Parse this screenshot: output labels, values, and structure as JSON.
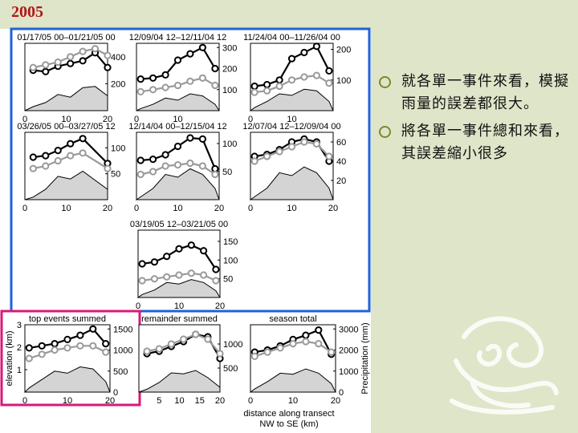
{
  "slide": {
    "title": "2005",
    "bullets": [
      "就各單一事件來看，模擬雨量的誤差都很大。",
      "將各單一事件總和來看，其誤差縮小很多"
    ],
    "colors": {
      "title": "#b0171a",
      "background": "#dfe5c8",
      "blue_box": "#1f62d9",
      "pink_box": "#d9197a",
      "bullet": "#7a8a2c"
    },
    "ornament": "decorative-dragon-emblem-icon"
  },
  "figure": {
    "ylabel_left": "elevation (km)",
    "ylabel_right": "Precipitation (mm)",
    "xlabel": [
      "distance along transect",
      "NW to SE (km)"
    ]
  },
  "chart_data": [
    {
      "type": "line",
      "title": "01/17/05 00–01/21/05 00",
      "xlim": [
        0,
        20
      ],
      "xticks": [
        0,
        10,
        20
      ],
      "right_ticks": [
        "200",
        "400"
      ],
      "right_range": [
        0,
        500
      ],
      "left_ticks": [],
      "left_range": [
        0,
        3
      ],
      "x": [
        2,
        5,
        8,
        11,
        14,
        17,
        20
      ],
      "series": [
        {
          "style": "observed",
          "values": [
            300,
            290,
            330,
            350,
            370,
            430,
            320
          ]
        },
        {
          "style": "simulated",
          "values": [
            320,
            340,
            360,
            400,
            440,
            460,
            410
          ]
        },
        {
          "style": "terrain",
          "values": [
            30,
            60,
            120,
            100,
            170,
            180,
            110
          ]
        }
      ]
    },
    {
      "type": "line",
      "title": "12/09/04 12–12/11/04 12",
      "xlim": [
        0,
        20
      ],
      "xticks": [
        0,
        10
      ],
      "right_ticks": [
        "100",
        "200",
        "300"
      ],
      "right_range": [
        0,
        320
      ],
      "left_ticks": [],
      "left_range": [
        0,
        3
      ],
      "x": [
        1,
        4,
        7,
        10,
        13,
        16,
        19
      ],
      "series": [
        {
          "style": "observed",
          "values": [
            150,
            155,
            170,
            240,
            270,
            300,
            200
          ]
        },
        {
          "style": "simulated",
          "values": [
            90,
            100,
            110,
            120,
            140,
            155,
            120
          ]
        },
        {
          "style": "terrain",
          "values": [
            10,
            30,
            60,
            50,
            80,
            70,
            30
          ]
        }
      ]
    },
    {
      "type": "line",
      "title": "11/24/04 00–11/26/04 00",
      "xlim": [
        0,
        20
      ],
      "xticks": [
        0,
        10
      ],
      "right_ticks": [
        "100",
        "200"
      ],
      "right_range": [
        0,
        220
      ],
      "left_ticks": [],
      "left_range": [
        0,
        3
      ],
      "x": [
        1,
        4,
        7,
        10,
        13,
        16,
        19
      ],
      "series": [
        {
          "style": "observed",
          "values": [
            80,
            85,
            100,
            170,
            190,
            210,
            130
          ]
        },
        {
          "style": "simulated",
          "values": [
            60,
            65,
            80,
            100,
            110,
            115,
            90
          ]
        },
        {
          "style": "terrain",
          "values": [
            10,
            30,
            55,
            50,
            70,
            65,
            30
          ]
        }
      ]
    },
    {
      "type": "line",
      "title": "03/26/05 00–03/27/05 12",
      "xlim": [
        0,
        20
      ],
      "xticks": [
        0,
        10,
        20
      ],
      "right_ticks": [
        "50",
        "100"
      ],
      "right_range": [
        0,
        130
      ],
      "left_ticks": [],
      "left_range": [
        0,
        3
      ],
      "x": [
        2,
        5,
        8,
        11,
        14,
        20
      ],
      "series": [
        {
          "style": "observed",
          "values": [
            82,
            85,
            95,
            108,
            118,
            70
          ]
        },
        {
          "style": "simulated",
          "values": [
            60,
            65,
            75,
            85,
            90,
            60
          ]
        },
        {
          "style": "terrain",
          "values": [
            5,
            20,
            45,
            40,
            55,
            20
          ]
        }
      ]
    },
    {
      "type": "line",
      "title": "12/14/04 00–12/15/04 12",
      "xlim": [
        0,
        20
      ],
      "xticks": [
        0,
        10,
        20
      ],
      "right_ticks": [
        "50",
        "100"
      ],
      "right_range": [
        0,
        120
      ],
      "left_ticks": [],
      "left_range": [
        0,
        3
      ],
      "x": [
        1,
        4,
        7,
        10,
        13,
        16,
        19
      ],
      "series": [
        {
          "style": "observed",
          "values": [
            70,
            72,
            80,
            95,
            110,
            108,
            55
          ]
        },
        {
          "style": "simulated",
          "values": [
            45,
            50,
            60,
            62,
            65,
            60,
            45
          ]
        },
        {
          "style": "terrain",
          "values": [
            5,
            20,
            45,
            40,
            55,
            45,
            20
          ]
        }
      ]
    },
    {
      "type": "line",
      "title": "12/07/04 12–12/09/04 00",
      "xlim": [
        0,
        20
      ],
      "xticks": [
        0,
        10,
        20
      ],
      "right_ticks": [
        "20",
        "40",
        "60"
      ],
      "right_range": [
        0,
        70
      ],
      "left_ticks": [],
      "left_range": [
        0,
        3
      ],
      "x": [
        1,
        4,
        7,
        10,
        13,
        16,
        19
      ],
      "series": [
        {
          "style": "observed",
          "values": [
            45,
            47,
            52,
            60,
            63,
            60,
            40
          ]
        },
        {
          "style": "simulated",
          "values": [
            40,
            45,
            50,
            55,
            60,
            58,
            45
          ]
        },
        {
          "style": "terrain",
          "values": [
            3,
            12,
            28,
            25,
            34,
            28,
            12
          ]
        }
      ]
    },
    {
      "type": "line",
      "title": "03/19/05 12–03/21/05 00",
      "xlim": [
        0,
        20
      ],
      "xticks": [
        0,
        10,
        20
      ],
      "right_ticks": [
        "50",
        "100",
        "150"
      ],
      "right_range": [
        0,
        180
      ],
      "left_ticks": [],
      "left_range": [
        0,
        3
      ],
      "x": [
        1,
        4,
        7,
        10,
        13,
        16,
        19
      ],
      "series": [
        {
          "style": "observed",
          "values": [
            90,
            95,
            110,
            130,
            140,
            125,
            75
          ]
        },
        {
          "style": "simulated",
          "values": [
            45,
            50,
            55,
            60,
            65,
            60,
            45
          ]
        },
        {
          "style": "terrain",
          "values": [
            8,
            20,
            40,
            36,
            48,
            40,
            18
          ]
        }
      ]
    },
    {
      "type": "line",
      "title": "top events summed",
      "xlim": [
        0,
        20
      ],
      "xticks": [
        0,
        10,
        20
      ],
      "right_ticks": [
        "0",
        "500",
        "1000",
        "1500"
      ],
      "right_range": [
        0,
        1600
      ],
      "left_ticks": [
        "1",
        "2",
        "3"
      ],
      "left_range": [
        0,
        3
      ],
      "x": [
        1,
        4,
        7,
        10,
        13,
        16,
        19
      ],
      "series": [
        {
          "style": "observed",
          "values": [
            1050,
            1100,
            1150,
            1250,
            1350,
            1500,
            1150
          ]
        },
        {
          "style": "simulated",
          "values": [
            800,
            900,
            1000,
            1050,
            1100,
            1100,
            950
          ]
        },
        {
          "style": "terrain",
          "values": [
            100,
            300,
            500,
            450,
            600,
            550,
            250
          ]
        }
      ]
    },
    {
      "type": "line",
      "title": "remainder summed",
      "xlim": [
        0,
        20
      ],
      "xticks": [
        5,
        10,
        15,
        20
      ],
      "right_ticks": [
        "500",
        "1000"
      ],
      "right_range": [
        0,
        1400
      ],
      "left_ticks": [],
      "left_range": [
        0,
        3
      ],
      "x": [
        2,
        5,
        8,
        11,
        14,
        17,
        20
      ],
      "series": [
        {
          "style": "observed",
          "values": [
            800,
            850,
            950,
            1050,
            1200,
            1150,
            700
          ]
        },
        {
          "style": "simulated",
          "values": [
            850,
            900,
            1000,
            1100,
            1200,
            1100,
            800
          ]
        },
        {
          "style": "terrain",
          "values": [
            60,
            200,
            400,
            380,
            450,
            300,
            100
          ]
        }
      ]
    },
    {
      "type": "line",
      "title": "season total",
      "xlim": [
        0,
        20
      ],
      "xticks": [
        0,
        10,
        20
      ],
      "right_ticks": [
        "0",
        "1000",
        "2000",
        "3000"
      ],
      "right_range": [
        0,
        3200
      ],
      "left_ticks": [],
      "left_range": [
        0,
        3
      ],
      "x": [
        1,
        4,
        7,
        10,
        13,
        16,
        19
      ],
      "series": [
        {
          "style": "observed",
          "values": [
            1900,
            2000,
            2200,
            2500,
            2700,
            2950,
            1800
          ]
        },
        {
          "style": "simulated",
          "values": [
            1700,
            1900,
            2100,
            2300,
            2400,
            2300,
            1900
          ]
        },
        {
          "style": "terrain",
          "values": [
            150,
            500,
            900,
            850,
            1100,
            900,
            400
          ]
        }
      ]
    }
  ]
}
